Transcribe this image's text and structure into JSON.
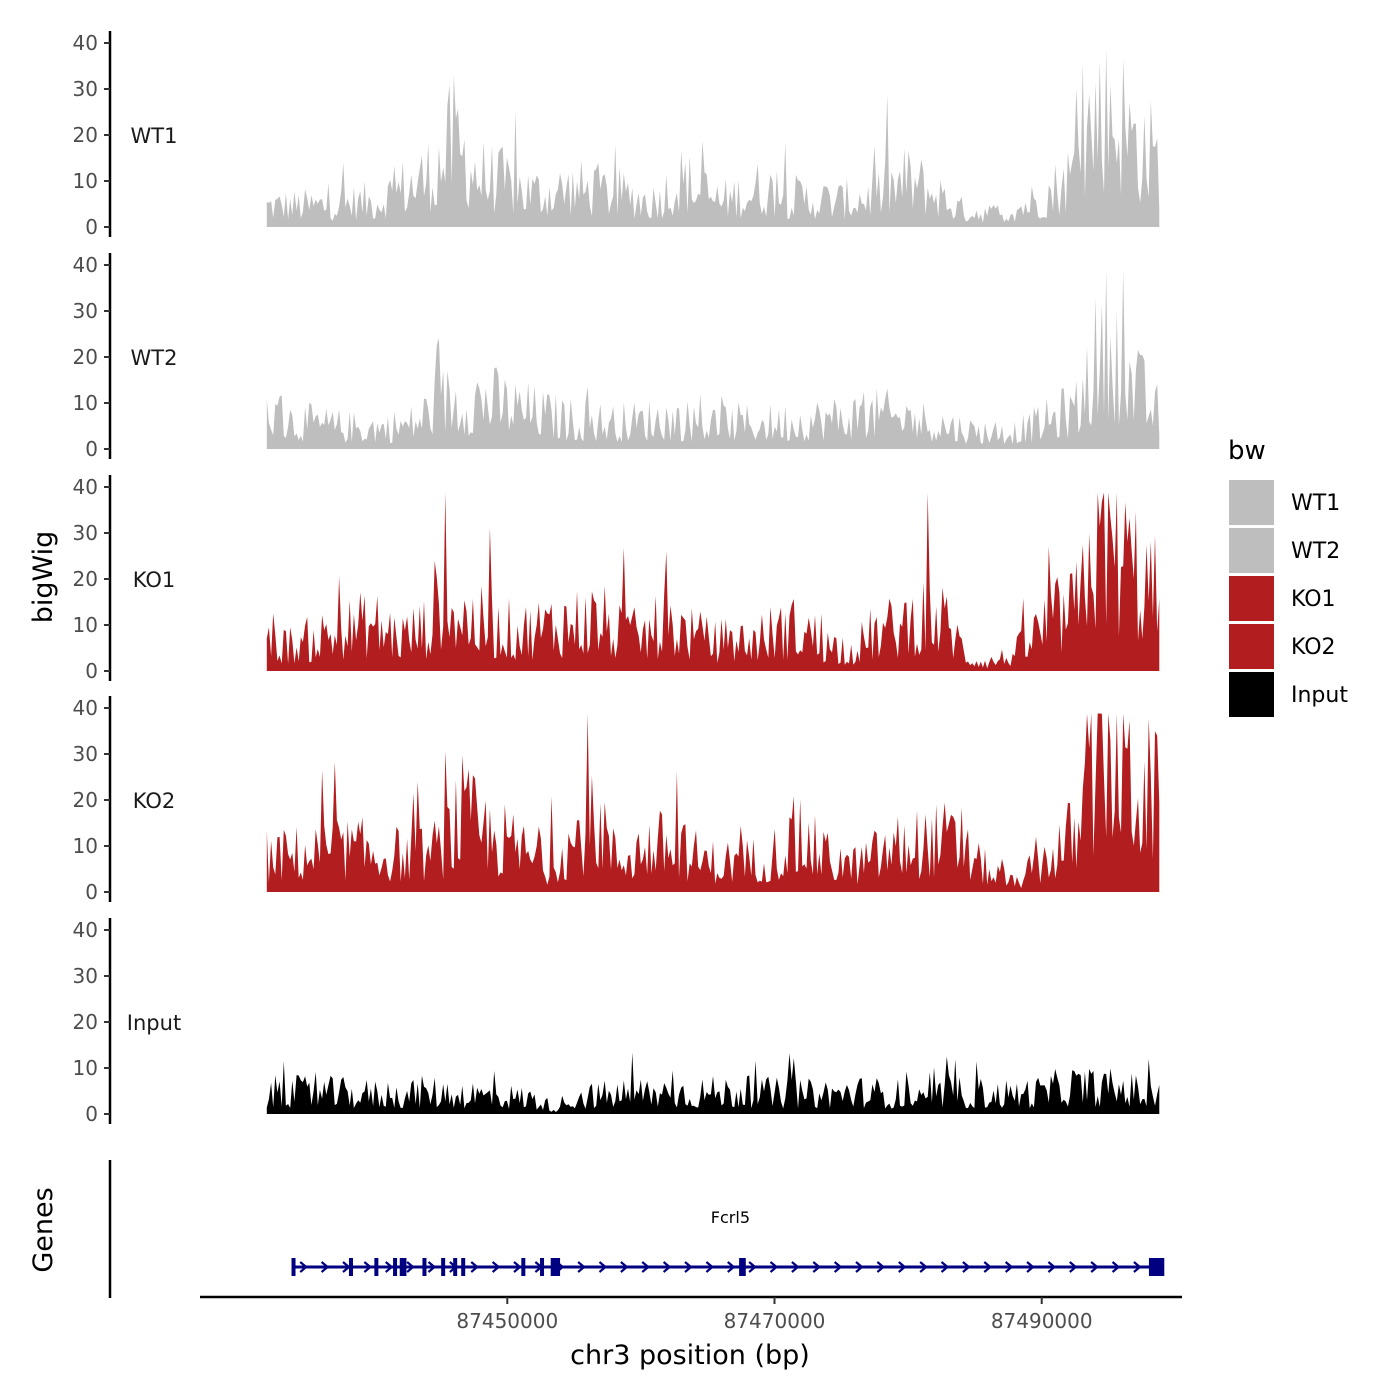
{
  "chart_data": {
    "type": "area",
    "chromosome": "chr3",
    "xlabel": "chr3 position (bp)",
    "ylabel": "bigWig",
    "genes_ylabel": "Genes",
    "xlim": [
      87427000,
      87500500
    ],
    "x_ticks": [
      87450000,
      87470000,
      87490000
    ],
    "x_tick_labels": [
      "87450000",
      "87470000",
      "87490000"
    ],
    "ylim": [
      0,
      40
    ],
    "y_ticks": [
      0,
      10,
      20,
      30,
      40
    ],
    "y_tick_labels": [
      "0",
      "10",
      "20",
      "30",
      "40"
    ],
    "region": [
      87432000,
      87498800
    ],
    "legend_title": "bw",
    "series": [
      {
        "name": "WT1",
        "color": "#bebebe",
        "x": [
          87432000,
          87435000,
          87440000,
          87443500,
          87444500,
          87446000,
          87448000,
          87452000,
          87455000,
          87458000,
          87461000,
          87463000,
          87466000,
          87469000,
          87471000,
          87475000,
          87478000,
          87480000,
          87482000,
          87484000,
          87487000,
          87490000,
          87491500,
          87493000,
          87493200,
          87495000,
          87496500,
          87498800
        ],
        "values": [
          5,
          5,
          6,
          11,
          13,
          20,
          12,
          8,
          9,
          8,
          6,
          11,
          6,
          9,
          7,
          6,
          8,
          11,
          8,
          4,
          3,
          7,
          10,
          15,
          22,
          30,
          22,
          15
        ]
      },
      {
        "name": "WT2",
        "color": "#bebebe",
        "x": [
          87432000,
          87435000,
          87438000,
          87441000,
          87443000,
          87445000,
          87448000,
          87450000,
          87454000,
          87458000,
          87462000,
          87465000,
          87470000,
          87474000,
          87478000,
          87482000,
          87485000,
          87488000,
          87490000,
          87491500,
          87493000,
          87493200,
          87495000,
          87496500,
          87498800
        ],
        "values": [
          8,
          6,
          5,
          5,
          6,
          11,
          12,
          10,
          7,
          6,
          7,
          6,
          6,
          7,
          8,
          6,
          4,
          4,
          6,
          8,
          10,
          16,
          25,
          16,
          8
        ]
      },
      {
        "name": "KO1",
        "color": "#b21e1f",
        "x": [
          87432000,
          87434000,
          87437000,
          87440000,
          87442000,
          87444000,
          87445000,
          87447000,
          87449000,
          87451000,
          87454000,
          87457000,
          87458000,
          87460000,
          87462000,
          87465000,
          87468000,
          87470000,
          87472000,
          87474000,
          87476000,
          87477000,
          87479000,
          87481000,
          87483000,
          87484500,
          87486000,
          87488000,
          87490000,
          87491500,
          87493000,
          87493200,
          87495000,
          87496500,
          87498800
        ],
        "values": [
          6,
          6,
          9,
          11,
          8,
          10,
          18,
          12,
          10,
          9,
          11,
          12,
          9,
          8,
          11,
          7,
          7,
          9,
          10,
          6,
          5,
          8,
          10,
          13,
          11,
          3,
          2,
          4,
          10,
          13,
          15,
          27,
          32,
          25,
          17
        ]
      },
      {
        "name": "KO2",
        "color": "#b21e1f",
        "x": [
          87432000,
          87435000,
          87438000,
          87441000,
          87443000,
          87445000,
          87446500,
          87448000,
          87451000,
          87453000,
          87455000,
          87457000,
          87458000,
          87460000,
          87462000,
          87465000,
          87468000,
          87470000,
          87472000,
          87474000,
          87476000,
          87478000,
          87480000,
          87483000,
          87486000,
          87488000,
          87490000,
          87491500,
          87493000,
          87493200,
          87495000,
          87496500,
          87498800
        ],
        "values": [
          8,
          9,
          10,
          9,
          8,
          10,
          18,
          14,
          10,
          6,
          12,
          17,
          8,
          10,
          11,
          7,
          7,
          9,
          12,
          8,
          6,
          9,
          11,
          12,
          5,
          2,
          7,
          11,
          14,
          25,
          35,
          28,
          20
        ]
      },
      {
        "name": "Input",
        "color": "#000000",
        "x": [
          87432000,
          87436000,
          87440000,
          87444000,
          87448000,
          87452000,
          87453500,
          87455000,
          87458000,
          87460000,
          87464000,
          87468000,
          87472000,
          87476000,
          87480000,
          87481000,
          87483000,
          87487000,
          87490000,
          87492000,
          87494000,
          87496000,
          87498800
        ],
        "values": [
          5,
          5,
          4.5,
          5,
          4.5,
          3.5,
          1.5,
          4,
          4.5,
          5,
          5,
          5,
          4.5,
          5,
          4.5,
          3,
          5,
          4.5,
          5,
          6.5,
          6,
          6,
          4
        ]
      }
    ],
    "gene": {
      "name": "Fcrl5",
      "strand": "+",
      "color": "#000080",
      "start": 87434000,
      "end": 87498800,
      "exons": [
        87434000,
        87438300,
        87440200,
        87441600,
        87442100,
        87442300,
        87443800,
        87445200,
        87446100,
        87446700,
        87451200,
        87452600,
        87453400,
        87453600,
        87453800,
        87467500,
        87467700,
        87498400,
        87498800
      ]
    }
  }
}
